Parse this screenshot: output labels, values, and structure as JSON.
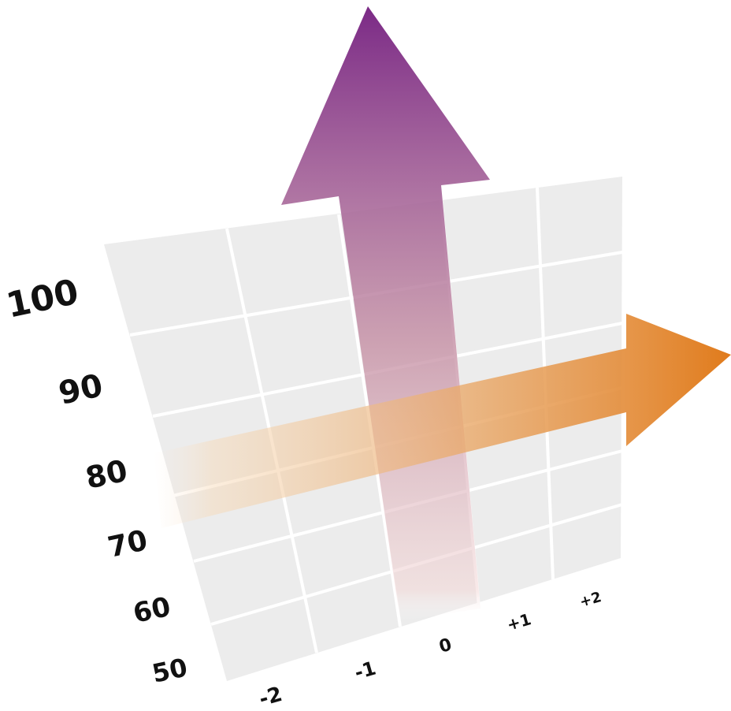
{
  "y_axis": {
    "ticks": [
      "50",
      "60",
      "70",
      "80",
      "90",
      "100"
    ]
  },
  "x_axis": {
    "ticks": [
      "-2",
      "-1",
      "0",
      "+1",
      "+2"
    ]
  },
  "colors": {
    "panel": "#ececec",
    "grid_lines": "#ffffff",
    "vertical_arrow": "#7b2a86",
    "horizontal_arrow": "#e07b1c"
  },
  "arrows": {
    "vertical": {
      "icon": "up-arrow-icon",
      "fill": "gradient",
      "fades_toward": "bottom"
    },
    "horizontal": {
      "icon": "right-arrow-icon",
      "fill": "gradient",
      "fades_toward": "left"
    }
  }
}
